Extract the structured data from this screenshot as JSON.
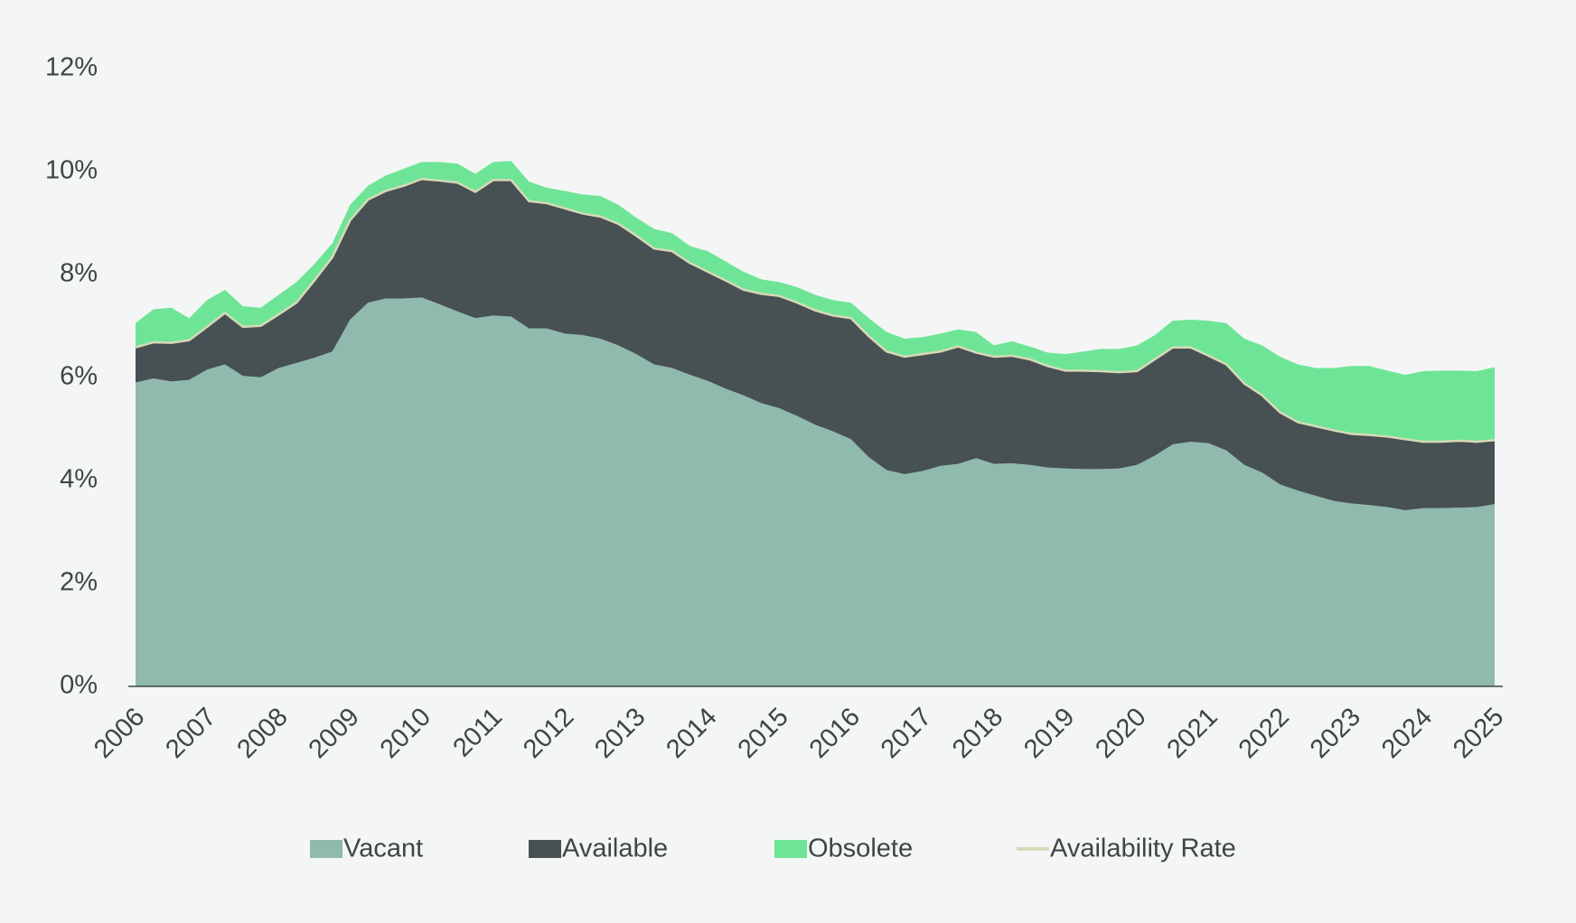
{
  "chart_data": {
    "type": "area",
    "stacked": true,
    "x": [
      2006,
      2006.25,
      2006.5,
      2006.75,
      2007,
      2007.25,
      2007.5,
      2007.75,
      2008,
      2008.25,
      2008.5,
      2008.75,
      2009,
      2009.25,
      2009.5,
      2009.75,
      2010,
      2010.25,
      2010.5,
      2010.75,
      2011,
      2011.25,
      2011.5,
      2011.75,
      2012,
      2012.25,
      2012.5,
      2012.75,
      2013,
      2013.25,
      2013.5,
      2013.75,
      2014,
      2014.25,
      2014.5,
      2014.75,
      2015,
      2015.25,
      2015.5,
      2015.75,
      2016,
      2016.25,
      2016.5,
      2016.75,
      2017,
      2017.25,
      2017.5,
      2017.75,
      2018,
      2018.25,
      2018.5,
      2018.75,
      2019,
      2019.25,
      2019.5,
      2019.75,
      2020,
      2020.25,
      2020.5,
      2020.75,
      2021,
      2021.25,
      2021.5,
      2021.75,
      2022,
      2022.25,
      2022.5,
      2022.75,
      2023,
      2023.25,
      2023.5,
      2023.75,
      2024,
      2024.25,
      2024.5,
      2024.75,
      2025
    ],
    "series": [
      {
        "name": "Vacant",
        "color": "#8fbaad",
        "values": [
          5.9,
          5.98,
          5.92,
          5.95,
          6.15,
          6.25,
          6.03,
          6.0,
          6.18,
          6.28,
          6.38,
          6.5,
          7.12,
          7.45,
          7.53,
          7.53,
          7.55,
          7.42,
          7.28,
          7.15,
          7.2,
          7.18,
          6.95,
          6.95,
          6.85,
          6.82,
          6.75,
          6.62,
          6.45,
          6.25,
          6.18,
          6.05,
          5.93,
          5.78,
          5.65,
          5.5,
          5.4,
          5.25,
          5.08,
          4.95,
          4.8,
          4.45,
          4.2,
          4.12,
          4.18,
          4.28,
          4.32,
          4.43,
          4.32,
          4.33,
          4.3,
          4.25,
          4.23,
          4.22,
          4.22,
          4.23,
          4.3,
          4.48,
          4.7,
          4.75,
          4.72,
          4.58,
          4.3,
          4.15,
          3.92,
          3.8,
          3.7,
          3.6,
          3.55,
          3.52,
          3.48,
          3.42,
          3.46,
          3.46,
          3.47,
          3.48,
          3.54
        ]
      },
      {
        "name": "Available",
        "color": "#475052",
        "values": [
          0.68,
          0.7,
          0.75,
          0.77,
          0.83,
          1.0,
          0.95,
          1.0,
          1.04,
          1.17,
          1.5,
          1.83,
          1.93,
          2.0,
          2.09,
          2.19,
          2.3,
          2.4,
          2.5,
          2.45,
          2.63,
          2.65,
          2.47,
          2.43,
          2.43,
          2.36,
          2.37,
          2.36,
          2.3,
          2.25,
          2.27,
          2.17,
          2.12,
          2.1,
          2.05,
          2.12,
          2.18,
          2.2,
          2.22,
          2.25,
          2.35,
          2.35,
          2.3,
          2.28,
          2.27,
          2.22,
          2.28,
          2.05,
          2.08,
          2.09,
          2.05,
          1.97,
          1.9,
          1.91,
          1.9,
          1.87,
          1.82,
          1.87,
          1.88,
          1.83,
          1.7,
          1.67,
          1.58,
          1.5,
          1.4,
          1.33,
          1.35,
          1.37,
          1.35,
          1.36,
          1.37,
          1.38,
          1.29,
          1.29,
          1.3,
          1.27,
          1.24
        ]
      },
      {
        "name": "Obsolete",
        "color": "#6ee596",
        "values": [
          0.47,
          0.64,
          0.68,
          0.43,
          0.52,
          0.45,
          0.4,
          0.35,
          0.38,
          0.4,
          0.32,
          0.27,
          0.3,
          0.27,
          0.3,
          0.33,
          0.33,
          0.36,
          0.37,
          0.35,
          0.35,
          0.37,
          0.38,
          0.3,
          0.34,
          0.37,
          0.4,
          0.37,
          0.35,
          0.38,
          0.35,
          0.33,
          0.4,
          0.37,
          0.35,
          0.28,
          0.27,
          0.3,
          0.3,
          0.3,
          0.3,
          0.35,
          0.38,
          0.35,
          0.33,
          0.35,
          0.33,
          0.4,
          0.22,
          0.28,
          0.25,
          0.26,
          0.32,
          0.37,
          0.43,
          0.45,
          0.5,
          0.47,
          0.52,
          0.54,
          0.68,
          0.8,
          0.87,
          0.97,
          1.08,
          1.12,
          1.13,
          1.21,
          1.32,
          1.34,
          1.28,
          1.25,
          1.37,
          1.38,
          1.36,
          1.37,
          1.42
        ]
      },
      {
        "name": "Availability Rate",
        "type": "line",
        "color": "#d8d9b8",
        "values": [
          6.58,
          6.68,
          6.67,
          6.72,
          6.98,
          7.25,
          6.98,
          7.0,
          7.22,
          7.45,
          7.88,
          8.33,
          9.05,
          9.45,
          9.62,
          9.72,
          9.85,
          9.82,
          9.78,
          9.6,
          9.83,
          9.83,
          9.42,
          9.38,
          9.28,
          9.18,
          9.12,
          8.98,
          8.75,
          8.5,
          8.45,
          8.22,
          8.05,
          7.88,
          7.7,
          7.62,
          7.58,
          7.45,
          7.3,
          7.2,
          7.15,
          6.8,
          6.5,
          6.4,
          6.45,
          6.5,
          6.6,
          6.48,
          6.4,
          6.42,
          6.35,
          6.22,
          6.13,
          6.13,
          6.12,
          6.1,
          6.12,
          6.35,
          6.58,
          6.58,
          6.42,
          6.25,
          5.88,
          5.65,
          5.32,
          5.13,
          5.05,
          4.97,
          4.9,
          4.88,
          4.85,
          4.8,
          4.75,
          4.75,
          4.77,
          4.75,
          4.78
        ]
      }
    ],
    "xlim": [
      2006,
      2025
    ],
    "xticks": [
      2006,
      2007,
      2008,
      2009,
      2010,
      2011,
      2012,
      2013,
      2014,
      2015,
      2016,
      2017,
      2018,
      2019,
      2020,
      2021,
      2022,
      2023,
      2024,
      2025
    ],
    "ylim": [
      0,
      12
    ],
    "yticks": [
      {
        "value": 0,
        "label": "0%"
      },
      {
        "value": 2,
        "label": "2%"
      },
      {
        "value": 4,
        "label": "4%"
      },
      {
        "value": 6,
        "label": "6%"
      },
      {
        "value": 8,
        "label": "8%"
      },
      {
        "value": 10,
        "label": "10%"
      },
      {
        "value": 12,
        "label": "12%"
      }
    ],
    "legend": "bottom"
  }
}
